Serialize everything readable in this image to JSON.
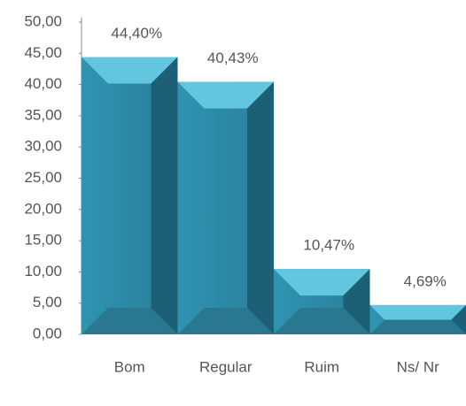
{
  "chart_data": {
    "type": "bar",
    "categories": [
      "Bom",
      "Regular",
      "Ruim",
      "Ns/ Nr"
    ],
    "values": [
      44.4,
      40.43,
      10.47,
      4.69
    ],
    "value_labels": [
      "44,40%",
      "40,43%",
      "10,47%",
      "4,69%"
    ],
    "color": "#2e8aa6",
    "ylim": [
      0,
      50
    ],
    "yticks": [
      {
        "value": 0,
        "label": "0,00"
      },
      {
        "value": 5,
        "label": "5,00"
      },
      {
        "value": 10,
        "label": "10,00"
      },
      {
        "value": 15,
        "label": "15,00"
      },
      {
        "value": 20,
        "label": "20,00"
      },
      {
        "value": 25,
        "label": "25,00"
      },
      {
        "value": 30,
        "label": "30,00"
      },
      {
        "value": 35,
        "label": "35,00"
      },
      {
        "value": 40,
        "label": "40,00"
      },
      {
        "value": 45,
        "label": "45,00"
      },
      {
        "value": 50,
        "label": "50,00"
      }
    ],
    "grid": false
  }
}
